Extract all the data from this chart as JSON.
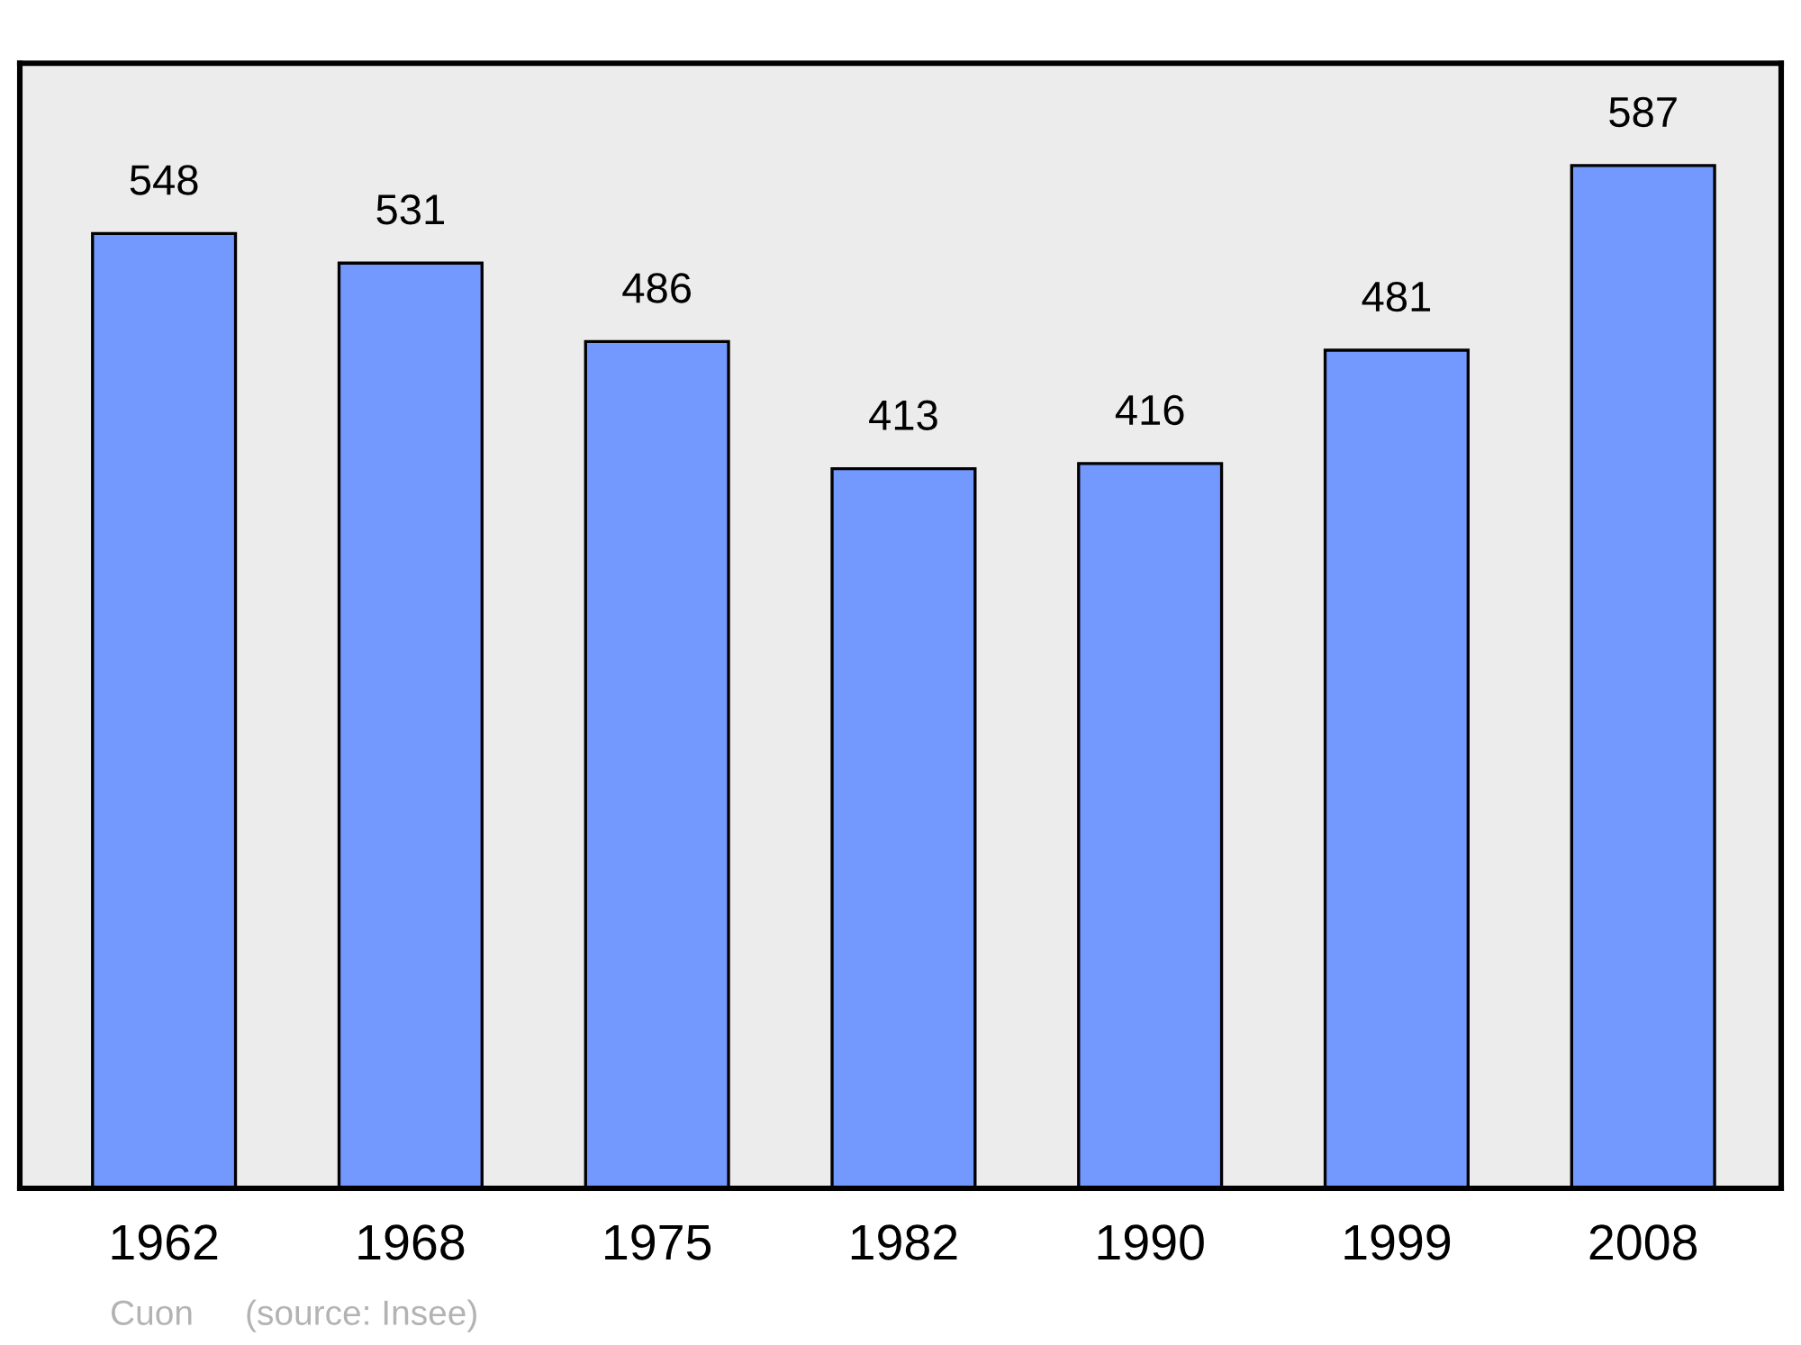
{
  "chart_data": {
    "type": "bar",
    "categories": [
      "1962",
      "1968",
      "1975",
      "1982",
      "1990",
      "1999",
      "2008"
    ],
    "values": [
      548,
      531,
      486,
      413,
      416,
      481,
      587
    ],
    "color": "#7399ff",
    "data_labels": true,
    "grid": false,
    "legend": false,
    "annotations": [
      "Cuon",
      "(source: Insee)"
    ]
  }
}
